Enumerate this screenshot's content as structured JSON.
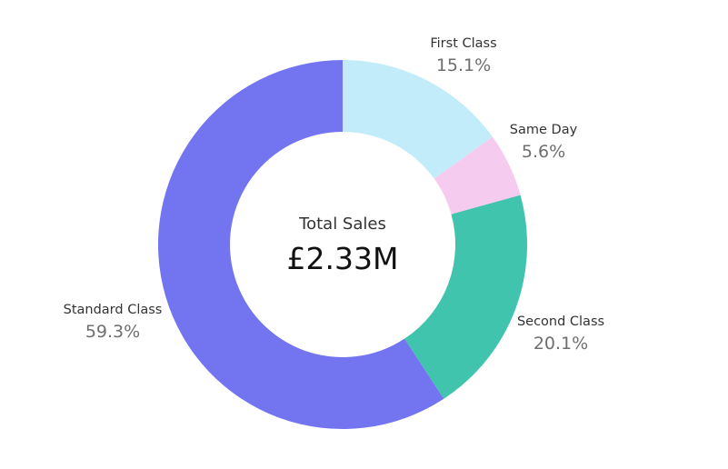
{
  "chart_data": {
    "type": "pie",
    "donut": true,
    "center_label": "Total Sales",
    "center_value": "£2.33M",
    "slices": [
      {
        "label": "First Class",
        "percent_text": "15.1%",
        "value": 15.1,
        "color": "#c2ecfa"
      },
      {
        "label": "Same Day",
        "percent_text": "5.6%",
        "value": 5.6,
        "color": "#f5cbef"
      },
      {
        "label": "Second Class",
        "percent_text": "20.1%",
        "value": 20.1,
        "color": "#41c4ad"
      },
      {
        "label": "Standard Class",
        "percent_text": "59.3%",
        "value": 59.3,
        "color": "#7274f0"
      }
    ]
  }
}
